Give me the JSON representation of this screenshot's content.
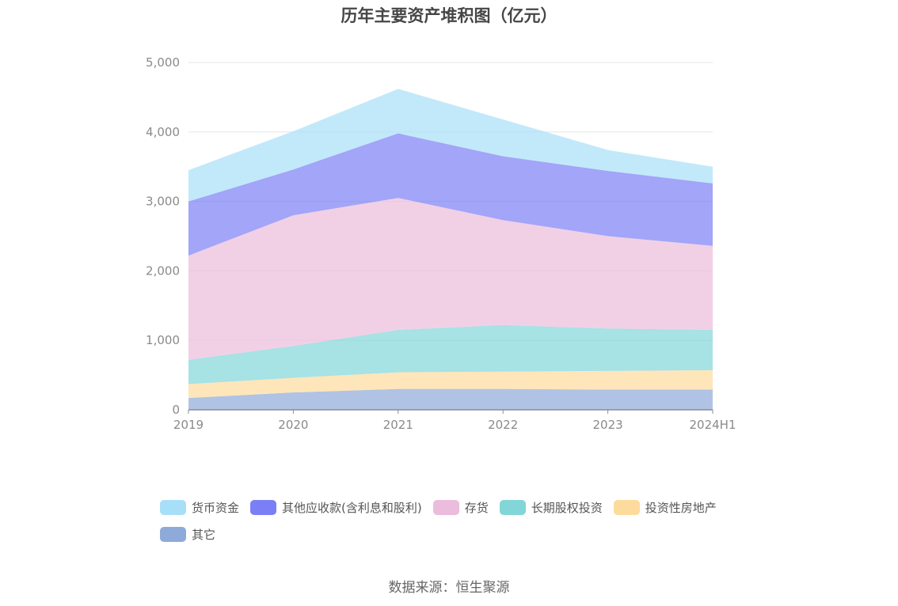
{
  "chart_data": {
    "type": "area",
    "stacked": true,
    "title": "历年主要资产堆积图（亿元）",
    "source": "数据来源：恒生聚源",
    "categories": [
      "2019",
      "2020",
      "2021",
      "2022",
      "2023",
      "2024H1"
    ],
    "yticks": [
      "0",
      "1,000",
      "2,000",
      "3,000",
      "4,000",
      "5,000"
    ],
    "ylim": [
      0,
      5000
    ],
    "grid": true,
    "legend_position": "bottom",
    "series": [
      {
        "name": "其它",
        "color": "#8eaad8",
        "values": [
          170,
          250,
          300,
          300,
          290,
          290
        ]
      },
      {
        "name": "投资性房地产",
        "color": "#fddb9c",
        "values": [
          200,
          210,
          240,
          250,
          270,
          280
        ]
      },
      {
        "name": "长期股权投资",
        "color": "#82d6d8",
        "values": [
          350,
          460,
          610,
          670,
          610,
          580
        ]
      },
      {
        "name": "存货",
        "color": "#ebbcdc",
        "values": [
          1500,
          1880,
          1900,
          1510,
          1330,
          1210
        ]
      },
      {
        "name": "其他应收款(含利息和股利)",
        "color": "#7b7ff5",
        "values": [
          780,
          660,
          930,
          920,
          940,
          900
        ]
      },
      {
        "name": "货币资金",
        "color": "#a8dff8",
        "values": [
          450,
          550,
          640,
          530,
          300,
          240
        ]
      }
    ],
    "legend_order": [
      "货币资金",
      "其他应收款(含利息和股利)",
      "存货",
      "长期股权投资",
      "投资性房地产",
      "其它"
    ]
  }
}
